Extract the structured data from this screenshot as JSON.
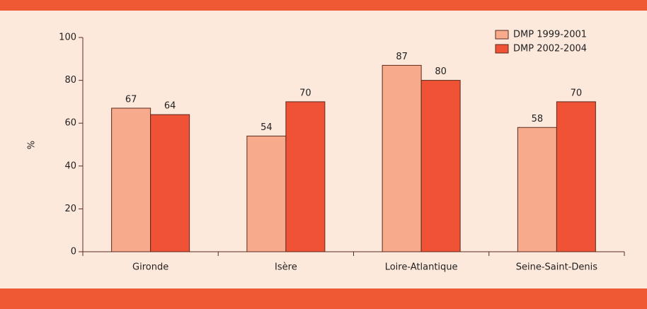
{
  "chart_data": {
    "type": "bar",
    "categories": [
      "Gironde",
      "Isère",
      "Loire-Atlantique",
      "Seine-Saint-Denis"
    ],
    "series": [
      {
        "name": "DMP 1999-2001",
        "color": "#f7aa8c",
        "values": [
          67,
          54,
          87,
          58
        ]
      },
      {
        "name": "DMP 2002-2004",
        "color": "#ef5234",
        "values": [
          64,
          70,
          80,
          70
        ]
      }
    ],
    "y_label": "%",
    "ylim": [
      0,
      100
    ],
    "yticks": [
      0,
      20,
      40,
      60,
      80,
      100
    ],
    "legend": "top-right",
    "grid": false
  }
}
